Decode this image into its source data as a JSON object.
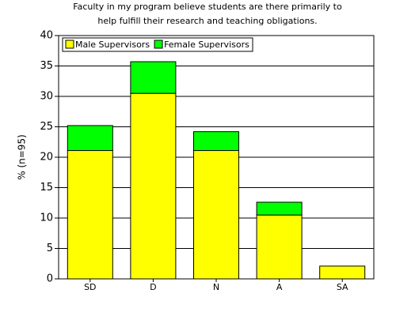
{
  "chart_data": {
    "type": "stacked_bar",
    "title": [
      "Faculty in my program believe students are there primarily to",
      "help fulfill their research and teaching obligations."
    ],
    "y_label": "% (n=95)",
    "categories": [
      "SD",
      "D",
      "N",
      "A",
      "SA"
    ],
    "series": [
      {
        "name": "Male Supervisors",
        "color": "#ffff00",
        "values": [
          21.1,
          30.5,
          21.1,
          10.5,
          2.1
        ]
      },
      {
        "name": "Female Supervisors",
        "color": "#00ff00",
        "values": [
          4.1,
          5.2,
          3.1,
          2.1,
          0
        ]
      }
    ],
    "ylim": [
      0,
      40
    ],
    "yticks": [
      0,
      5,
      10,
      15,
      20,
      25,
      30,
      35,
      40
    ],
    "grid": true,
    "legend": "top-left"
  }
}
